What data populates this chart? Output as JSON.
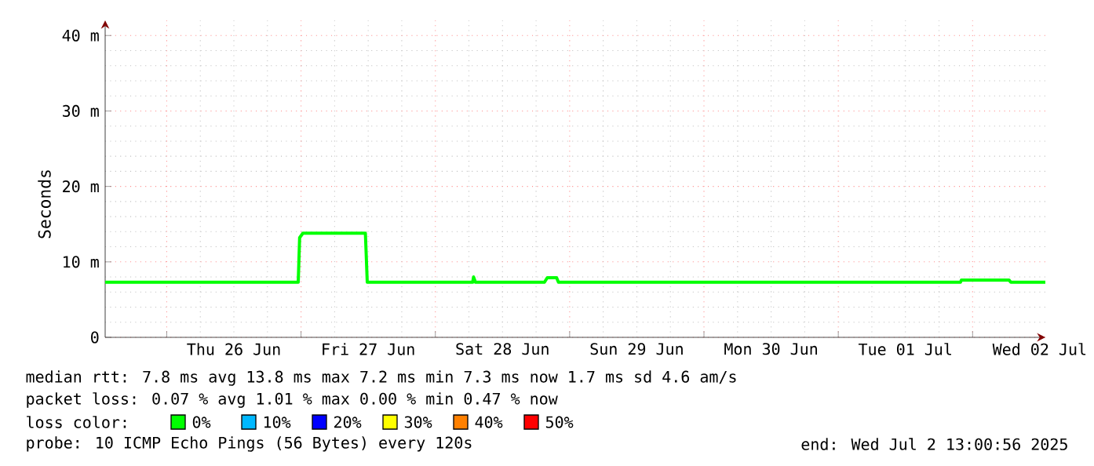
{
  "chart_data": {
    "type": "line",
    "ylabel": "Seconds",
    "x": [
      "2025-06-25T13:00",
      "2025-06-26T23:30",
      "2025-06-26T23:45",
      "2025-06-27T00:20",
      "2025-06-27T11:30",
      "2025-06-27T11:50",
      "2025-06-28T06:40",
      "2025-06-28T06:50",
      "2025-06-28T07:10",
      "2025-06-28T19:30",
      "2025-06-28T20:00",
      "2025-06-28T21:40",
      "2025-06-28T22:00",
      "2025-07-01T21:50",
      "2025-07-01T22:00",
      "2025-07-02T06:30",
      "2025-07-02T06:50",
      "2025-07-02T13:00"
    ],
    "series": [
      {
        "name": "0%",
        "color": "#00ff00",
        "values": [
          7.3,
          7.3,
          13.2,
          13.8,
          13.8,
          7.3,
          7.3,
          8.0,
          7.3,
          7.3,
          7.9,
          7.9,
          7.3,
          7.3,
          7.6,
          7.6,
          7.3,
          7.3
        ]
      },
      {
        "name": "10%",
        "color": "#00b8ff",
        "values": [
          null,
          null,
          null,
          null,
          null,
          null,
          null,
          null,
          null,
          null,
          null,
          null,
          null,
          null,
          null,
          null,
          null,
          null
        ]
      },
      {
        "name": "20%",
        "color": "#0000ff",
        "values": [
          null,
          null,
          null,
          null,
          null,
          null,
          null,
          null,
          null,
          null,
          null,
          null,
          null,
          null,
          null,
          null,
          null,
          null
        ]
      },
      {
        "name": "30%",
        "color": "#ffff00",
        "values": [
          null,
          null,
          null,
          null,
          null,
          null,
          null,
          null,
          null,
          null,
          null,
          null,
          null,
          null,
          null,
          null,
          null,
          null
        ]
      },
      {
        "name": "40%",
        "color": "#ff8000",
        "values": [
          null,
          null,
          null,
          null,
          null,
          null,
          null,
          null,
          null,
          null,
          null,
          null,
          null,
          null,
          null,
          null,
          null,
          null
        ]
      },
      {
        "name": "50%",
        "color": "#ff0000",
        "values": [
          null,
          null,
          null,
          null,
          null,
          null,
          null,
          null,
          null,
          null,
          null,
          null,
          null,
          null,
          null,
          null,
          null,
          null
        ]
      }
    ],
    "legend_title": "loss color:",
    "legend": "bottom",
    "xlim": [
      "2025-06-25T13:00",
      "2025-07-02T13:00"
    ],
    "xticks": [
      {
        "value": "2025-06-26T00:00",
        "label": null
      },
      {
        "value": "2025-06-27T00:00",
        "label": null
      },
      {
        "value": "2025-06-28T00:00",
        "label": null
      },
      {
        "value": "2025-06-29T00:00",
        "label": null
      },
      {
        "value": "2025-06-30T00:00",
        "label": null
      },
      {
        "value": "2025-07-01T00:00",
        "label": null
      },
      {
        "value": "2025-07-02T00:00",
        "label": null
      },
      {
        "value": "2025-06-26T12:00",
        "label": "Thu 26 Jun"
      },
      {
        "value": "2025-06-27T12:00",
        "label": "Fri 27 Jun"
      },
      {
        "value": "2025-06-28T12:00",
        "label": "Sat 28 Jun"
      },
      {
        "value": "2025-06-29T12:00",
        "label": "Sun 29 Jun"
      },
      {
        "value": "2025-06-30T12:00",
        "label": "Mon 30 Jun"
      },
      {
        "value": "2025-07-01T12:00",
        "label": "Tue 01 Jul"
      },
      {
        "value": "2025-07-02T12:00",
        "label": "Wed 02 Jul"
      }
    ],
    "ylim": [
      0,
      42
    ],
    "yticks": [
      0,
      {
        "value": 10,
        "label": "10 m"
      },
      {
        "value": 20,
        "label": "20 m"
      },
      {
        "value": 30,
        "label": "30 m"
      },
      {
        "value": 40,
        "label": "40 m"
      }
    ],
    "grid": true,
    "line_style": "solid",
    "annotations": [
      "median rtt: 7.8 ms avg 13.8 ms max 7.2 ms min 7.3 ms now 1.7 ms sd 4.6 am/s",
      "packet loss: 0.07 % avg 1.01 % max 0.00 % min 0.47 % now",
      "probe: 10 ICMP Echo Pings (56 Bytes) every 120s",
      "end: Wed Jul 2 13:00:56 2025"
    ]
  }
}
